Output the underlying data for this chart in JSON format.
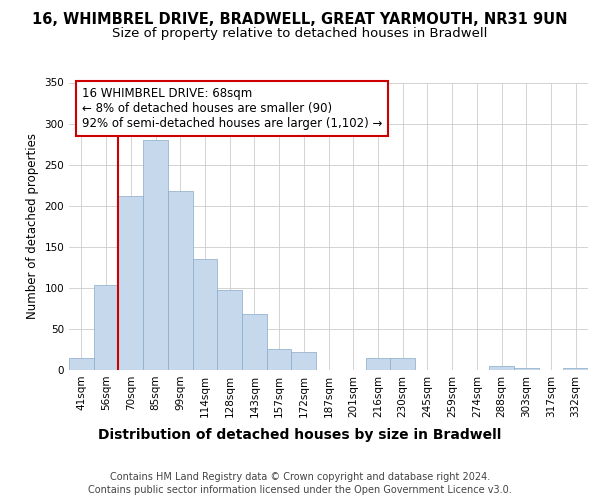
{
  "title1": "16, WHIMBREL DRIVE, BRADWELL, GREAT YARMOUTH, NR31 9UN",
  "title2": "Size of property relative to detached houses in Bradwell",
  "xlabel": "Distribution of detached houses by size in Bradwell",
  "ylabel": "Number of detached properties",
  "footnote1": "Contains HM Land Registry data © Crown copyright and database right 2024.",
  "footnote2": "Contains public sector information licensed under the Open Government Licence v3.0.",
  "bin_labels": [
    "41sqm",
    "56sqm",
    "70sqm",
    "85sqm",
    "99sqm",
    "114sqm",
    "128sqm",
    "143sqm",
    "157sqm",
    "172sqm",
    "187sqm",
    "201sqm",
    "216sqm",
    "230sqm",
    "245sqm",
    "259sqm",
    "274sqm",
    "288sqm",
    "303sqm",
    "317sqm",
    "332sqm"
  ],
  "bar_values": [
    15,
    103,
    212,
    280,
    218,
    135,
    97,
    68,
    25,
    22,
    0,
    0,
    15,
    15,
    0,
    0,
    0,
    5,
    3,
    0,
    3
  ],
  "bar_color": "#c5d8ec",
  "bar_edge_color": "#8aaac8",
  "property_line_x": 1.5,
  "property_line_color": "#cc0000",
  "annotation_line1": "16 WHIMBREL DRIVE: 68sqm",
  "annotation_line2": "← 8% of detached houses are smaller (90)",
  "annotation_line3": "92% of semi-detached houses are larger (1,102) →",
  "annotation_box_edge_color": "#cc0000",
  "ylim": [
    0,
    350
  ],
  "yticks": [
    0,
    50,
    100,
    150,
    200,
    250,
    300,
    350
  ],
  "background_color": "#ffffff",
  "title1_fontsize": 10.5,
  "title2_fontsize": 9.5,
  "xlabel_fontsize": 10,
  "ylabel_fontsize": 8.5,
  "tick_fontsize": 7.5,
  "annotation_fontsize": 8.5,
  "footnote_fontsize": 7
}
